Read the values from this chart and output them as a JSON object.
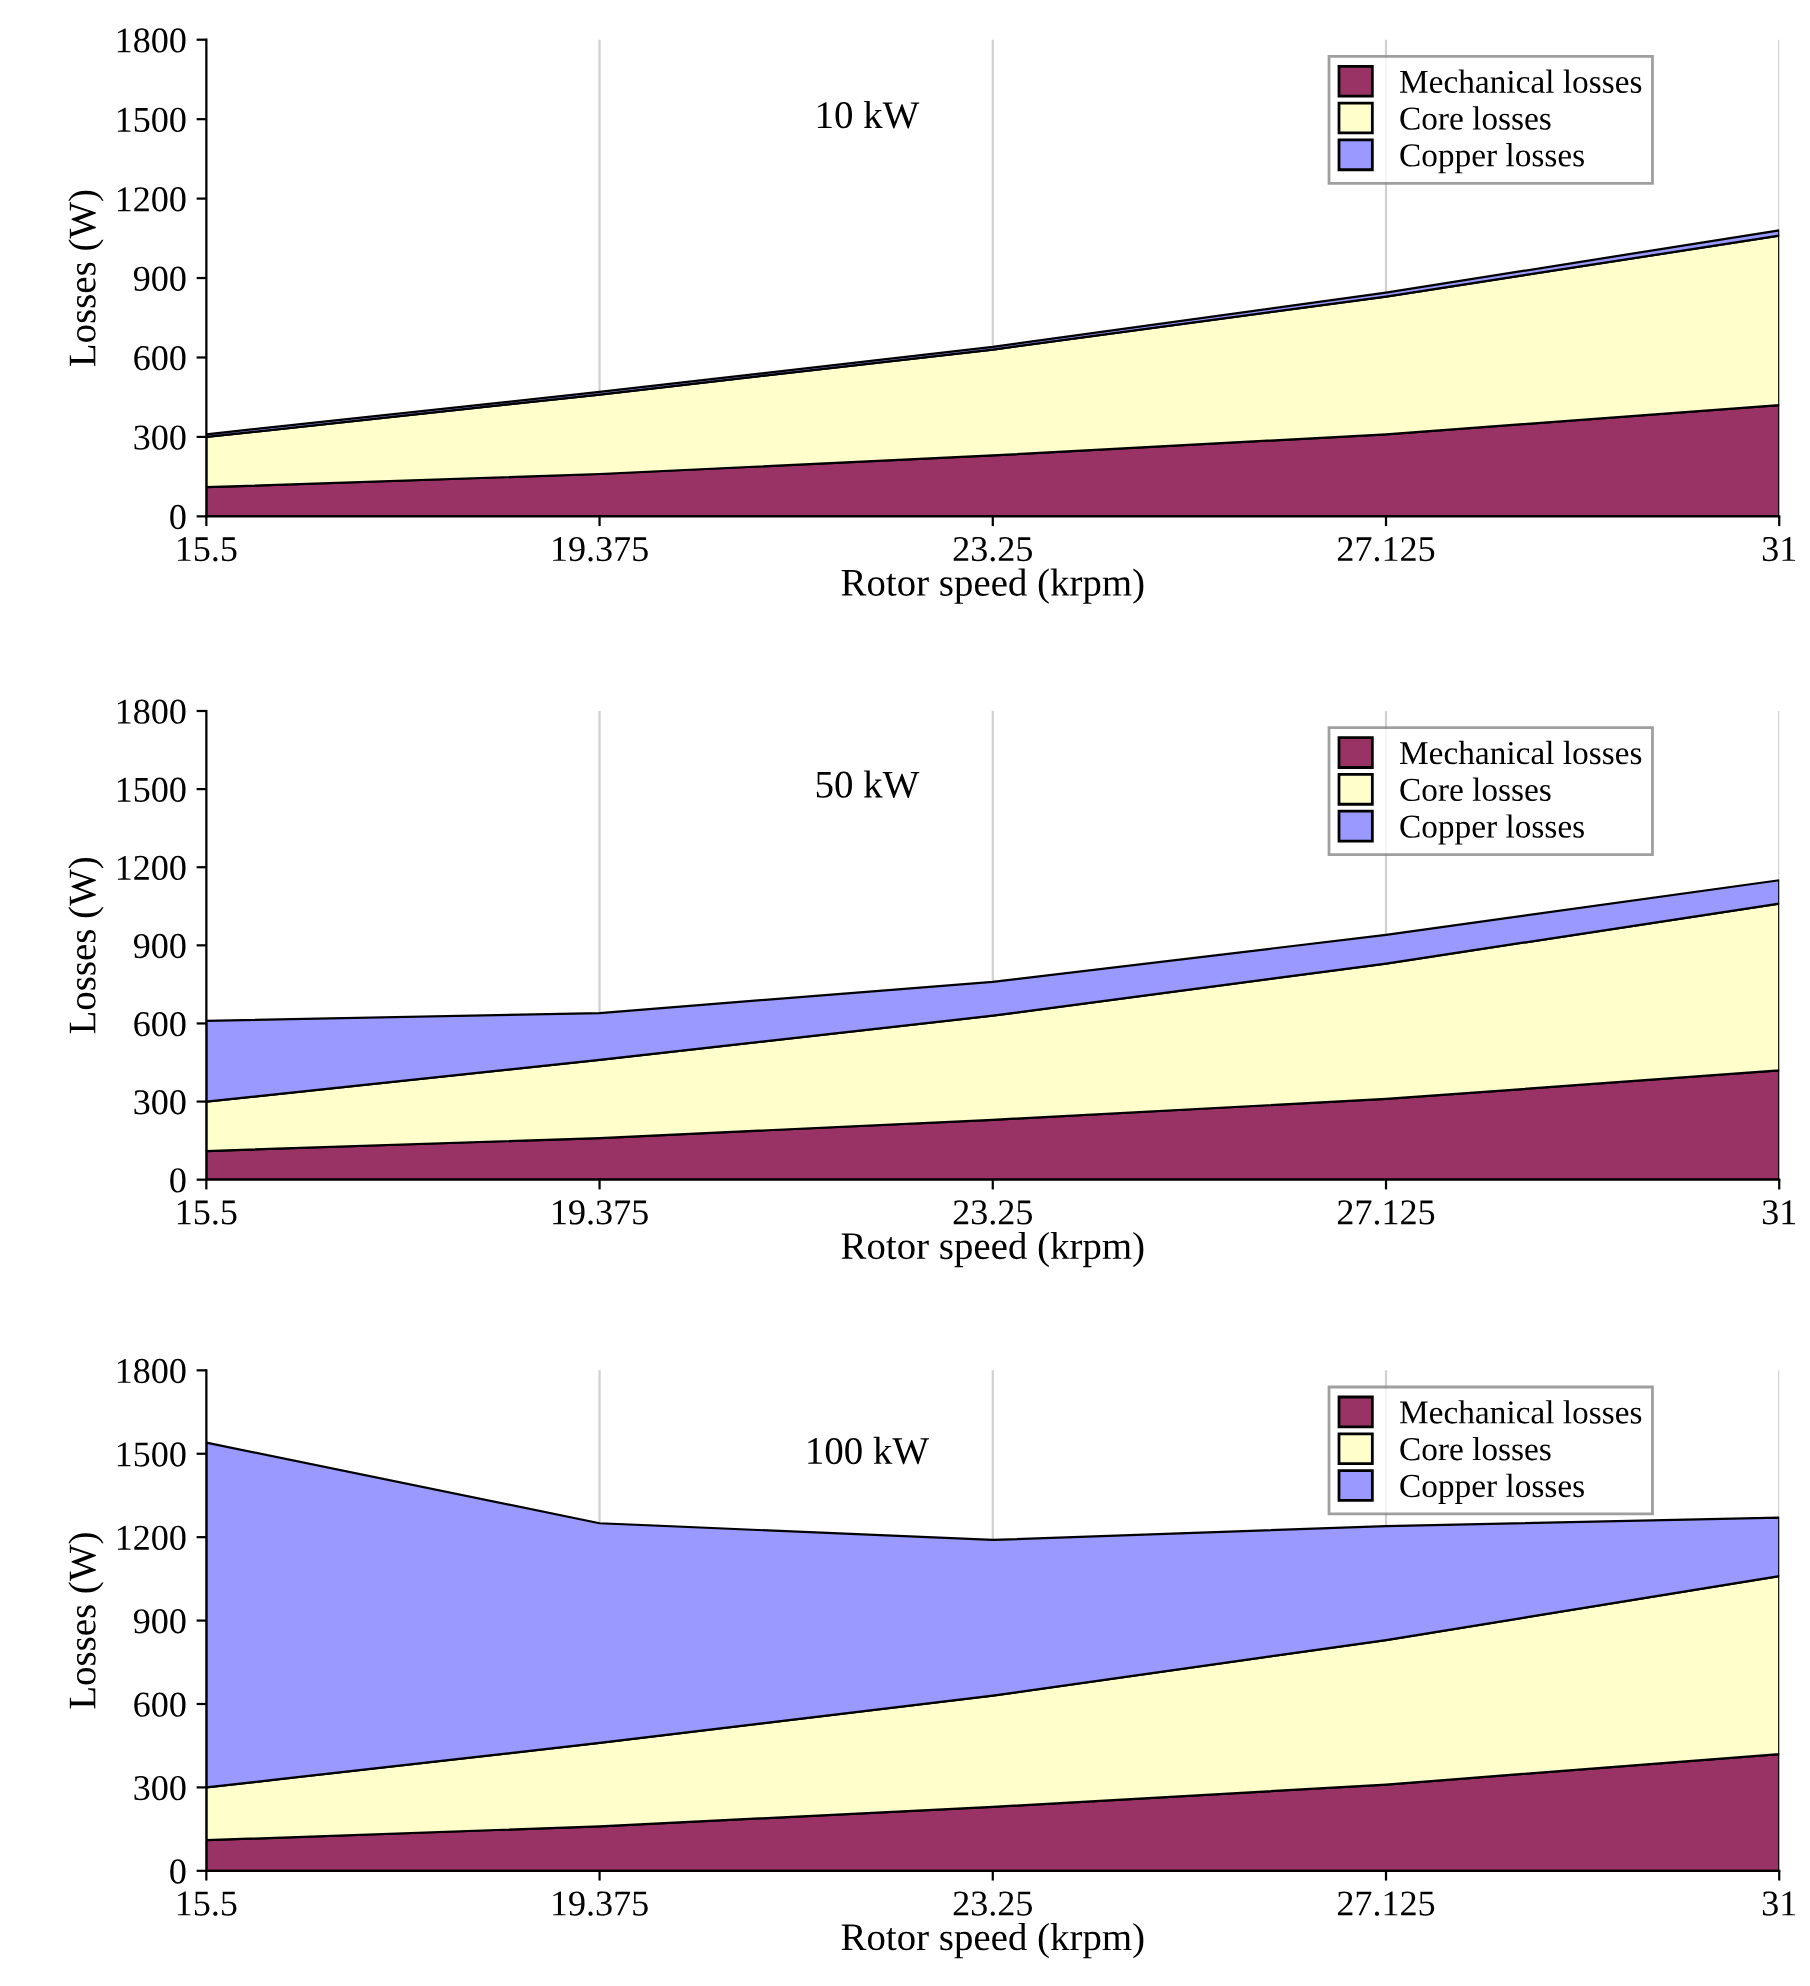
{
  "chart_data": [
    {
      "type": "area",
      "title": "10 kW",
      "xlabel": "Rotor speed (krpm)",
      "ylabel": "Losses (W)",
      "x": [
        15.5,
        19.375,
        23.25,
        27.125,
        31
      ],
      "stacked": true,
      "xlim": [
        15.5,
        31
      ],
      "xticks": [
        15.5,
        19.375,
        23.25,
        27.125,
        31
      ],
      "ylim": [
        0,
        1800
      ],
      "yticks": [
        0,
        300,
        600,
        900,
        1200,
        1500,
        1800
      ],
      "grid": "x",
      "legend": "top right",
      "series": [
        {
          "name": "Mechanical losses",
          "color": "#993366",
          "values": [
            110,
            160,
            230,
            310,
            420
          ]
        },
        {
          "name": "Core losses",
          "color": "#ffffcc",
          "values": [
            190,
            300,
            400,
            520,
            640
          ]
        },
        {
          "name": "Copper losses",
          "color": "#9999ff",
          "values": [
            10,
            10,
            10,
            15,
            20
          ]
        }
      ]
    },
    {
      "type": "area",
      "title": "50 kW",
      "xlabel": "Rotor speed (krpm)",
      "ylabel": "Losses (W)",
      "x": [
        15.5,
        19.375,
        23.25,
        27.125,
        31
      ],
      "stacked": true,
      "xlim": [
        15.5,
        31
      ],
      "xticks": [
        15.5,
        19.375,
        23.25,
        27.125,
        31
      ],
      "ylim": [
        0,
        1800
      ],
      "yticks": [
        0,
        300,
        600,
        900,
        1200,
        1500,
        1800
      ],
      "grid": "x",
      "legend": "top right",
      "series": [
        {
          "name": "Mechanical losses",
          "color": "#993366",
          "values": [
            110,
            160,
            230,
            310,
            420
          ]
        },
        {
          "name": "Core losses",
          "color": "#ffffcc",
          "values": [
            190,
            300,
            400,
            520,
            640
          ]
        },
        {
          "name": "Copper losses",
          "color": "#9999ff",
          "values": [
            310,
            180,
            130,
            110,
            90
          ]
        }
      ]
    },
    {
      "type": "area",
      "title": "100 kW",
      "xlabel": "Rotor speed (krpm)",
      "ylabel": "Losses (W)",
      "x": [
        15.5,
        19.375,
        23.25,
        27.125,
        31
      ],
      "stacked": true,
      "xlim": [
        15.5,
        31
      ],
      "xticks": [
        15.5,
        19.375,
        23.25,
        27.125,
        31
      ],
      "ylim": [
        0,
        1800
      ],
      "yticks": [
        0,
        300,
        600,
        900,
        1200,
        1500,
        1800
      ],
      "grid": "x",
      "legend": "top right",
      "series": [
        {
          "name": "Mechanical losses",
          "color": "#993366",
          "values": [
            110,
            160,
            230,
            310,
            420
          ]
        },
        {
          "name": "Core losses",
          "color": "#ffffcc",
          "values": [
            190,
            300,
            400,
            520,
            640
          ]
        },
        {
          "name": "Copper losses",
          "color": "#9999ff",
          "values": [
            1240,
            790,
            560,
            410,
            210
          ]
        }
      ]
    }
  ]
}
